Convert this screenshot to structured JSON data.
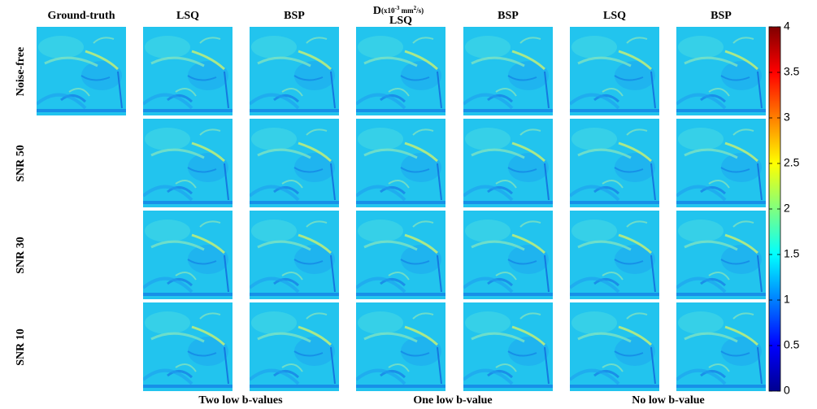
{
  "title": {
    "symbol": "D",
    "open": "(x10",
    "exp1": "-3",
    "mid": " mm",
    "exp2": "2",
    "close": "/s)"
  },
  "column_headers": [
    "Ground-truth",
    "LSQ",
    "BSP",
    "LSQ",
    "BSP",
    "LSQ",
    "BSP"
  ],
  "row_labels": [
    "Noise-free",
    "SNR 50",
    "SNR 30",
    "SNR 10"
  ],
  "group_labels": [
    "Two low b-values",
    "One low b-value",
    "No low b-value"
  ],
  "colorbar": {
    "lim": [
      0,
      4
    ],
    "ticks": [
      0,
      0.5,
      1,
      1.5,
      2,
      2.5,
      3,
      3.5,
      4
    ]
  }
}
